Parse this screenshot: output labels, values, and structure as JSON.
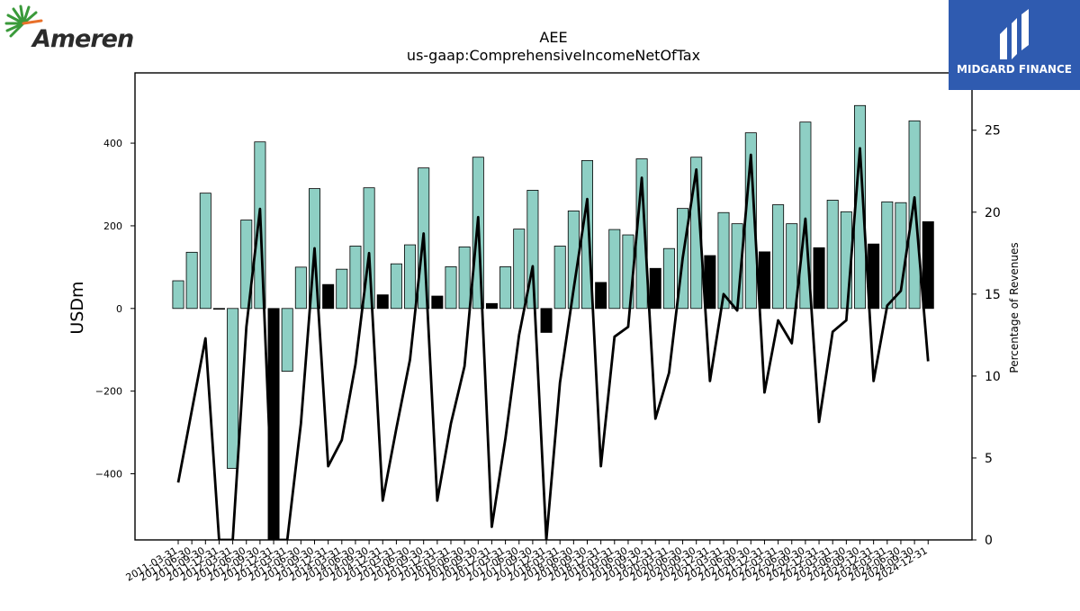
{
  "brand": {
    "left_name": "Ameren",
    "right_name": "MIDGARD FINANCE"
  },
  "colors": {
    "positive_bar": "#8ecfc4",
    "negative_bar": "#000000",
    "line": "#000000",
    "midgard_blue": "#2f5bb0",
    "ameren_green": "#3a9a3a",
    "ameren_orange": "#e8702a"
  },
  "chart_data": {
    "type": "bar",
    "title": "AEE",
    "subtitle": "us-gaap:ComprehensiveIncomeNetOfTax",
    "ylabel": "USDm",
    "y2label": "Percentage of Revenues",
    "ylim": [
      -560,
      570
    ],
    "y2lim": [
      0,
      28.5
    ],
    "yticks": [
      400,
      200,
      0,
      -200,
      -400
    ],
    "ytick_labels": [
      "400",
      "200",
      "0",
      "−200",
      "−400"
    ],
    "y2ticks": [
      25,
      20,
      15,
      10,
      5,
      0
    ],
    "y2tick_labels": [
      "25",
      "20",
      "15",
      "10",
      "5",
      "0"
    ],
    "grid": false,
    "categories": [
      "2011-03-31",
      "2011-06-30",
      "2011-09-30",
      "2011-12-31",
      "2012-03-31",
      "2012-06-30",
      "2012-09-30",
      "2012-12-31",
      "2013-03-31",
      "2013-06-30",
      "2013-09-30",
      "2013-12-31",
      "2014-03-31",
      "2014-06-30",
      "2014-09-30",
      "2014-12-31",
      "2015-03-31",
      "2015-06-30",
      "2015-09-30",
      "2015-12-31",
      "2016-03-31",
      "2016-06-30",
      "2016-09-30",
      "2016-12-31",
      "2017-03-31",
      "2017-06-30",
      "2017-09-30",
      "2017-12-31",
      "2018-03-31",
      "2018-06-30",
      "2018-09-30",
      "2018-12-31",
      "2019-03-31",
      "2019-06-30",
      "2019-09-30",
      "2019-12-31",
      "2020-03-31",
      "2020-06-30",
      "2020-09-30",
      "2020-12-31",
      "2021-03-31",
      "2021-06-30",
      "2021-09-30",
      "2021-12-31",
      "2022-03-31",
      "2022-06-30",
      "2022-09-30",
      "2022-12-31",
      "2023-03-31",
      "2023-06-30",
      "2023-09-30",
      "2023-12-31",
      "2024-03-31",
      "2024-06-30",
      "2024-09-30",
      "2024-12-31"
    ],
    "xtick_labels": [
      "2011-03-31",
      "2011-06-30",
      "2011-09-30",
      "2011-12-31",
      "2012-03-31",
      "2012-06-30",
      "2012-09-30",
      "2012-12-31",
      "2013-03-31",
      "2013-06-30",
      "2013-09-30",
      "2013-12-31",
      "2014-03-31",
      "2014-06-30",
      "2014-09-30",
      "2014-12-31",
      "2015-03-31",
      "2015-06-30",
      "2015-09-30",
      "2015-12-31",
      "2016-03-31",
      "2016-06-30",
      "2016-09-30",
      "2016-12-31",
      "2017-03-31",
      "2017-06-30",
      "2017-09-30",
      "2017-12-31",
      "2018-03-31",
      "2018-06-30",
      "2018-09-30",
      "2018-12-31",
      "2019-03-31",
      "2019-06-30",
      "2019-09-30",
      "2019-12-31",
      "2020-03-31",
      "2020-06-30",
      "2020-09-30",
      "2020-12-31",
      "2021-03-31",
      "2021-06-30",
      "2021-09-30",
      "2021-12-31",
      "2022-03-31",
      "2022-06-30",
      "2022-09-30",
      "2022-12-31",
      "2023-03-31",
      "2023-06-30",
      "2023-09-30",
      "2023-12-31",
      "2024-03-31",
      "2024-06-30",
      "2024-09-30",
      "2024-12-31"
    ],
    "series": [
      {
        "type": "bar",
        "axis": "left",
        "values": [
          67,
          136,
          279,
          0,
          -387,
          214,
          403,
          -560,
          -152,
          100,
          290,
          58,
          95,
          151,
          292,
          33,
          108,
          154,
          340,
          30,
          101,
          149,
          366,
          12,
          101,
          192,
          286,
          -58,
          151,
          236,
          358,
          63,
          191,
          178,
          362,
          97,
          145,
          242,
          366,
          128,
          232,
          205,
          425,
          137,
          251,
          205,
          451,
          147,
          262,
          234,
          491,
          156,
          258,
          256,
          454,
          210
        ],
        "bar_colors": [
          "pos",
          "pos",
          "pos",
          "pos",
          "pos",
          "pos",
          "pos",
          "neg",
          "pos",
          "pos",
          "pos",
          "neg",
          "pos",
          "pos",
          "pos",
          "neg",
          "pos",
          "pos",
          "pos",
          "neg",
          "pos",
          "pos",
          "pos",
          "neg",
          "pos",
          "pos",
          "pos",
          "neg",
          "pos",
          "pos",
          "pos",
          "neg",
          "pos",
          "pos",
          "pos",
          "neg",
          "pos",
          "pos",
          "pos",
          "neg",
          "pos",
          "pos",
          "pos",
          "neg",
          "pos",
          "pos",
          "pos",
          "neg",
          "pos",
          "pos",
          "pos",
          "neg",
          "pos",
          "pos",
          "pos",
          "neg"
        ]
      },
      {
        "type": "line",
        "axis": "right",
        "values": [
          3.5,
          7.9,
          12.3,
          0,
          0,
          13.0,
          20.2,
          0,
          0,
          7.1,
          17.8,
          4.5,
          6.1,
          10.7,
          17.5,
          2.4,
          6.8,
          11.0,
          18.7,
          2.4,
          7.1,
          10.6,
          19.7,
          0.8,
          6.2,
          12.5,
          16.7,
          0,
          9.6,
          15.3,
          20.8,
          4.5,
          12.4,
          13.0,
          22.1,
          7.4,
          10.2,
          17.2,
          22.6,
          9.7,
          15.0,
          14.0,
          23.5,
          9.0,
          13.4,
          12.0,
          19.6,
          7.2,
          12.7,
          13.4,
          23.9,
          9.7,
          14.3,
          15.2,
          20.9,
          10.9
        ]
      }
    ]
  }
}
